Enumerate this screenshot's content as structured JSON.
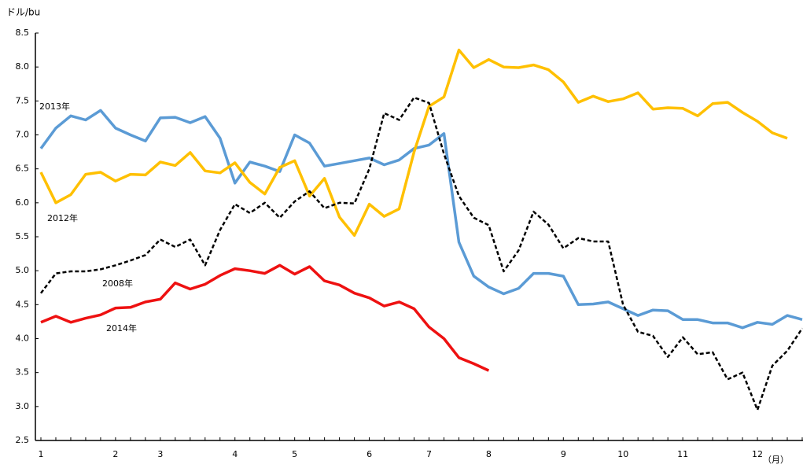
{
  "chart_data": {
    "type": "line",
    "y_unit_label": "ドル/bu",
    "x_unit_label": "（月）",
    "categories": [
      "1",
      null,
      null,
      null,
      null,
      "2",
      null,
      null,
      "3",
      null,
      null,
      null,
      null,
      "4",
      null,
      null,
      null,
      "5",
      null,
      null,
      null,
      null,
      "6",
      null,
      null,
      null,
      "7",
      null,
      null,
      null,
      "8",
      null,
      null,
      null,
      null,
      "9",
      null,
      null,
      null,
      "10",
      null,
      null,
      null,
      "11",
      null,
      null,
      null,
      null,
      "12",
      null,
      null,
      null
    ],
    "series": [
      {
        "name": "2013年",
        "color": "#5b9bd5",
        "dashed": false,
        "label_pos": [
          50,
          136
        ],
        "values": [
          6.8,
          7.1,
          7.28,
          7.22,
          7.36,
          7.1,
          7.0,
          6.91,
          7.25,
          7.26,
          7.18,
          7.27,
          6.95,
          6.29,
          6.6,
          6.54,
          6.46,
          7.0,
          6.88,
          6.54,
          6.58,
          6.62,
          6.66,
          6.56,
          6.63,
          6.8,
          6.85,
          7.02,
          5.42,
          4.92,
          4.76,
          4.66,
          4.74,
          4.96,
          4.96,
          4.92,
          4.5,
          4.51,
          4.54,
          4.44,
          4.34,
          4.42,
          4.41,
          4.28,
          4.28,
          4.23,
          4.23,
          4.16,
          4.24,
          4.21,
          4.34,
          4.28
        ]
      },
      {
        "name": "2012年",
        "color": "#ffc000",
        "dashed": false,
        "label_pos": [
          60,
          278
        ],
        "values": [
          6.45,
          6.0,
          6.12,
          6.42,
          6.45,
          6.32,
          6.42,
          6.41,
          6.6,
          6.55,
          6.74,
          6.47,
          6.44,
          6.59,
          6.3,
          6.13,
          6.52,
          6.62,
          6.1,
          6.36,
          5.79,
          5.52,
          5.98,
          5.8,
          5.91,
          6.75,
          7.42,
          7.56,
          8.25,
          7.99,
          8.11,
          8.0,
          7.99,
          8.03,
          7.96,
          7.78,
          7.48,
          7.57,
          7.49,
          7.53,
          7.62,
          7.38,
          7.4,
          7.39,
          7.28,
          7.46,
          7.48,
          7.33,
          7.2,
          7.03,
          6.95,
          null
        ]
      },
      {
        "name": "2008年",
        "color": "#000000",
        "dashed": true,
        "label_pos": [
          130,
          361
        ],
        "values": [
          4.67,
          4.96,
          4.99,
          4.99,
          5.02,
          5.08,
          5.15,
          5.23,
          5.46,
          5.35,
          5.46,
          5.08,
          5.6,
          5.98,
          5.85,
          6.0,
          5.78,
          6.02,
          6.17,
          5.92,
          6.0,
          5.99,
          6.5,
          7.32,
          7.22,
          7.55,
          7.47,
          6.72,
          6.1,
          5.78,
          5.67,
          4.99,
          5.3,
          5.87,
          5.68,
          5.33,
          5.48,
          5.43,
          5.43,
          4.5,
          4.1,
          4.04,
          3.73,
          4.02,
          3.77,
          3.8,
          3.4,
          3.5,
          2.95,
          3.6,
          3.82,
          4.15
        ]
      },
      {
        "name": "2014年",
        "color": "#ee1111",
        "dashed": false,
        "label_pos": [
          135,
          418
        ],
        "values": [
          4.24,
          4.33,
          4.24,
          4.3,
          4.35,
          4.45,
          4.46,
          4.54,
          4.58,
          4.82,
          4.73,
          4.8,
          4.93,
          5.03,
          5.0,
          4.96,
          5.08,
          4.95,
          5.06,
          4.85,
          4.79,
          4.67,
          4.6,
          4.48,
          4.54,
          4.44,
          4.17,
          4.0,
          3.72,
          3.63,
          3.53,
          null,
          null,
          null,
          null,
          null,
          null,
          null,
          null,
          null,
          null,
          null,
          null,
          null,
          null,
          null,
          null,
          null,
          null,
          null,
          null,
          null
        ]
      }
    ],
    "ylim": [
      2.5,
      8.5
    ],
    "yticks": [
      2.5,
      {
        "value": 3,
        "label": "3.0"
      },
      3.5,
      {
        "value": 4,
        "label": "4.0"
      },
      4.5,
      {
        "value": 5,
        "label": "5.0"
      },
      5.5,
      {
        "value": 6,
        "label": "6.0"
      },
      6.5,
      {
        "value": 7,
        "label": "7.0"
      },
      7.5,
      {
        "value": 8,
        "label": "8.0"
      },
      8.5
    ],
    "grid": false
  }
}
